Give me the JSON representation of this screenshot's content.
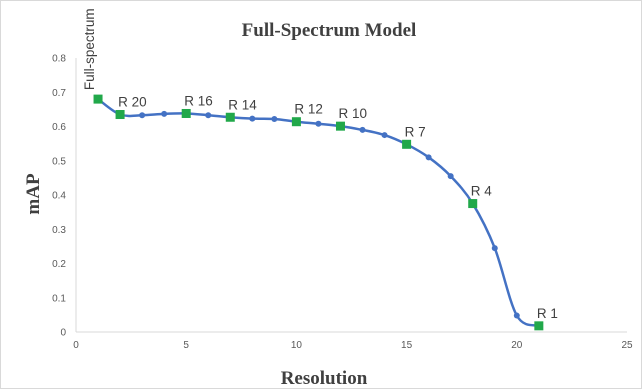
{
  "chart_data": {
    "type": "line",
    "title": "Full-Spectrum Model",
    "xlabel": "Resolution",
    "ylabel": "mAP",
    "xlim": [
      0,
      25
    ],
    "ylim": [
      0,
      0.8
    ],
    "xticks": [
      "0",
      "5",
      "10",
      "15",
      "20",
      "25"
    ],
    "yticks": [
      "0",
      "0.1",
      "0.2",
      "0.3",
      "0.4",
      "0.5",
      "0.6",
      "0.7",
      "0.8"
    ],
    "grid": false,
    "legend": "none",
    "line_color": "#4472C4",
    "highlight_color": "#21A84A",
    "series": [
      {
        "x": [
          1,
          2,
          3,
          4,
          5,
          6,
          7,
          8,
          9,
          10,
          11,
          12,
          13,
          14,
          15,
          16,
          17,
          18,
          19,
          20,
          21
        ],
        "y": [
          0.68,
          0.635,
          0.633,
          0.637,
          0.638,
          0.633,
          0.627,
          0.623,
          0.622,
          0.614,
          0.608,
          0.601,
          0.59,
          0.575,
          0.548,
          0.51,
          0.455,
          0.375,
          0.245,
          0.048,
          0.018
        ]
      }
    ],
    "annotations": [
      {
        "label": "Full-spectrum",
        "x": 1,
        "y": 0.68,
        "rotated": true
      },
      {
        "label": "R 20",
        "x": 2,
        "y": 0.635
      },
      {
        "label": "R 16",
        "x": 5,
        "y": 0.638
      },
      {
        "label": "R 14",
        "x": 7,
        "y": 0.627
      },
      {
        "label": "R 12",
        "x": 10,
        "y": 0.614
      },
      {
        "label": "R 10",
        "x": 12,
        "y": 0.601
      },
      {
        "label": "R 7",
        "x": 15,
        "y": 0.548
      },
      {
        "label": "R 4",
        "x": 18,
        "y": 0.375
      },
      {
        "label": "R 1",
        "x": 21,
        "y": 0.018
      }
    ]
  }
}
